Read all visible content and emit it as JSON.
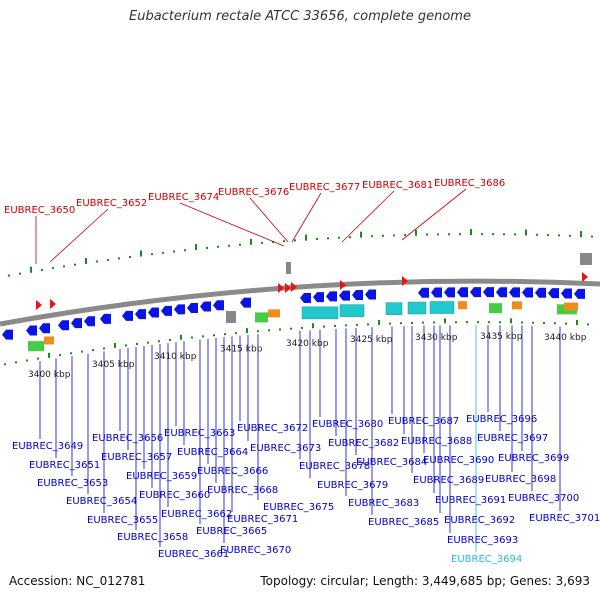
{
  "title": "Eubacterium rectale ATCC 33656, complete genome",
  "accession": "Accession: NC_012781",
  "topology": "Topology: circular; Length: 3,449,685 bp; Genes: 3,693",
  "colors": {
    "red_label": "#cc0000",
    "blue_label": "#0000cc",
    "highlight_label": "#22bbdd",
    "gene_blue": "#0a14e6",
    "gene_cyan": "#22c8cc",
    "gene_green": "#44cc44",
    "gene_orange": "#f08c1e",
    "gene_red": "#ee1111",
    "tick_green": "#1a8a1a",
    "axis_grey": "#888888"
  },
  "scale_labels": [
    "3400 kbp",
    "3405 kbp",
    "3410 kbp",
    "3415 kbp",
    "3420 kbp",
    "3425 kbp",
    "3430 kbp",
    "3435 kbp",
    "3440 kbp"
  ],
  "top_labels": [
    "EUBREC_3650",
    "EUBREC_3652",
    "EUBREC_3674",
    "EUBREC_3676",
    "EUBREC_3677",
    "EUBREC_3681",
    "EUBREC_3686"
  ],
  "bottom_labels": [
    "EUBREC_3649",
    "EUBREC_3651",
    "EUBREC_3653",
    "EUBREC_3654",
    "EUBREC_3655",
    "EUBREC_3656",
    "EUBREC_3657",
    "EUBREC_3658",
    "EUBREC_3659",
    "EUBREC_3660",
    "EUBREC_3661",
    "EUBREC_3662",
    "EUBREC_3663",
    "EUBREC_3664",
    "EUBREC_3665",
    "EUBREC_3666",
    "EUBREC_3668",
    "EUBREC_3670",
    "EUBREC_3671",
    "EUBREC_3672",
    "EUBREC_3673",
    "EUBREC_3675",
    "EUBREC_3678",
    "EUBREC_3679",
    "EUBREC_3680",
    "EUBREC_3682",
    "EUBREC_3683",
    "EUBREC_3684",
    "EUBREC_3685",
    "EUBREC_3687",
    "EUBREC_3688",
    "EUBREC_3689",
    "EUBREC_3690",
    "EUBREC_3691",
    "EUBREC_3692",
    "EUBREC_3693",
    "EUBREC_3694",
    "EUBREC_3696",
    "EUBREC_3697",
    "EUBREC_3698",
    "EUBREC_3699",
    "EUBREC_3700",
    "EUBREC_3701"
  ],
  "highlighted_label": "EUBREC_3694"
}
